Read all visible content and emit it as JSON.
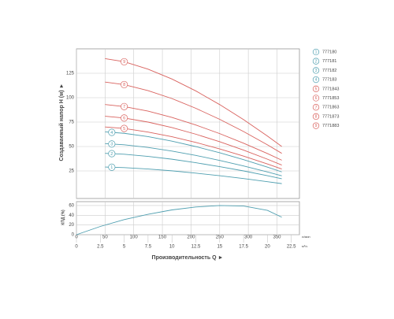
{
  "chart_data": [
    {
      "type": "line",
      "ylabel": "Создаваемый напор H (м) ►",
      "x": [
        3,
        5,
        7.5,
        10,
        12.5,
        15,
        17.5,
        20,
        21.5
      ],
      "xlim": [
        0,
        23.35
      ],
      "ylim": [
        0,
        150
      ],
      "yticks": [
        25,
        50,
        75,
        100,
        125
      ],
      "grid": true,
      "series": [
        {
          "label": "1",
          "name": "777180",
          "color": "#4f9fb0",
          "values": [
            29,
            28.4,
            27,
            25.1,
            22.7,
            20.1,
            17.2,
            14,
            12
          ]
        },
        {
          "label": "2",
          "name": "777181",
          "color": "#4f9fb0",
          "values": [
            43,
            42.1,
            39.9,
            37,
            33.4,
            29.4,
            25,
            20.1,
            17
          ]
        },
        {
          "label": "3",
          "name": "777182",
          "color": "#4f9fb0",
          "values": [
            53,
            51.8,
            49,
            45.3,
            40.9,
            35.7,
            30.1,
            23.9,
            20
          ]
        },
        {
          "label": "4",
          "name": "777183",
          "color": "#4f9fb0",
          "values": [
            65,
            63.5,
            60.1,
            55.5,
            49.9,
            43.6,
            36.5,
            28.9,
            24
          ]
        },
        {
          "label": "5",
          "name": "7771843",
          "color": "#d9625e",
          "values": [
            70,
            68.5,
            64.8,
            60,
            54.2,
            47.5,
            40.2,
            32.1,
            27
          ]
        },
        {
          "label": "6",
          "name": "7771853",
          "color": "#d9625e",
          "values": [
            81,
            79.2,
            75,
            69.4,
            62.6,
            54.9,
            46.3,
            37,
            31
          ]
        },
        {
          "label": "7",
          "name": "7771863",
          "color": "#d9625e",
          "values": [
            93,
            90.9,
            86.2,
            79.8,
            72,
            63.2,
            53.4,
            42.8,
            36
          ]
        },
        {
          "label": "8",
          "name": "7771873",
          "color": "#d9625e",
          "values": [
            116,
            113.4,
            107.2,
            99.1,
            89.1,
            77.8,
            65.3,
            51.7,
            43
          ]
        },
        {
          "label": "9",
          "name": "7771883",
          "color": "#d9625e",
          "values": [
            140,
            136.8,
            129.2,
            119.1,
            106.9,
            92.9,
            77.5,
            60.7,
            50
          ]
        }
      ]
    },
    {
      "type": "line",
      "ylabel": "КПД (%)",
      "xlabel": "Производительность Q ►",
      "xunit": "м³/ч",
      "x2unit": "л/мин",
      "x": [
        0,
        2.5,
        5,
        7.5,
        10,
        12.5,
        15,
        17.5,
        20,
        21.5
      ],
      "xlim": [
        0,
        23.35
      ],
      "xticks": [
        0,
        2.5,
        5,
        7.5,
        10,
        12.5,
        15,
        17.5,
        20,
        22.5
      ],
      "x2lim": [
        0,
        389.2
      ],
      "x2ticks": [
        0,
        50,
        100,
        150,
        200,
        250,
        300,
        350
      ],
      "ylim": [
        0,
        68
      ],
      "yticks": [
        0,
        20,
        40,
        60
      ],
      "grid": true,
      "series": [
        {
          "color": "#4f9fb0",
          "values": [
            0,
            17,
            31,
            42,
            51,
            57,
            60,
            59,
            50,
            36
          ]
        }
      ]
    }
  ]
}
